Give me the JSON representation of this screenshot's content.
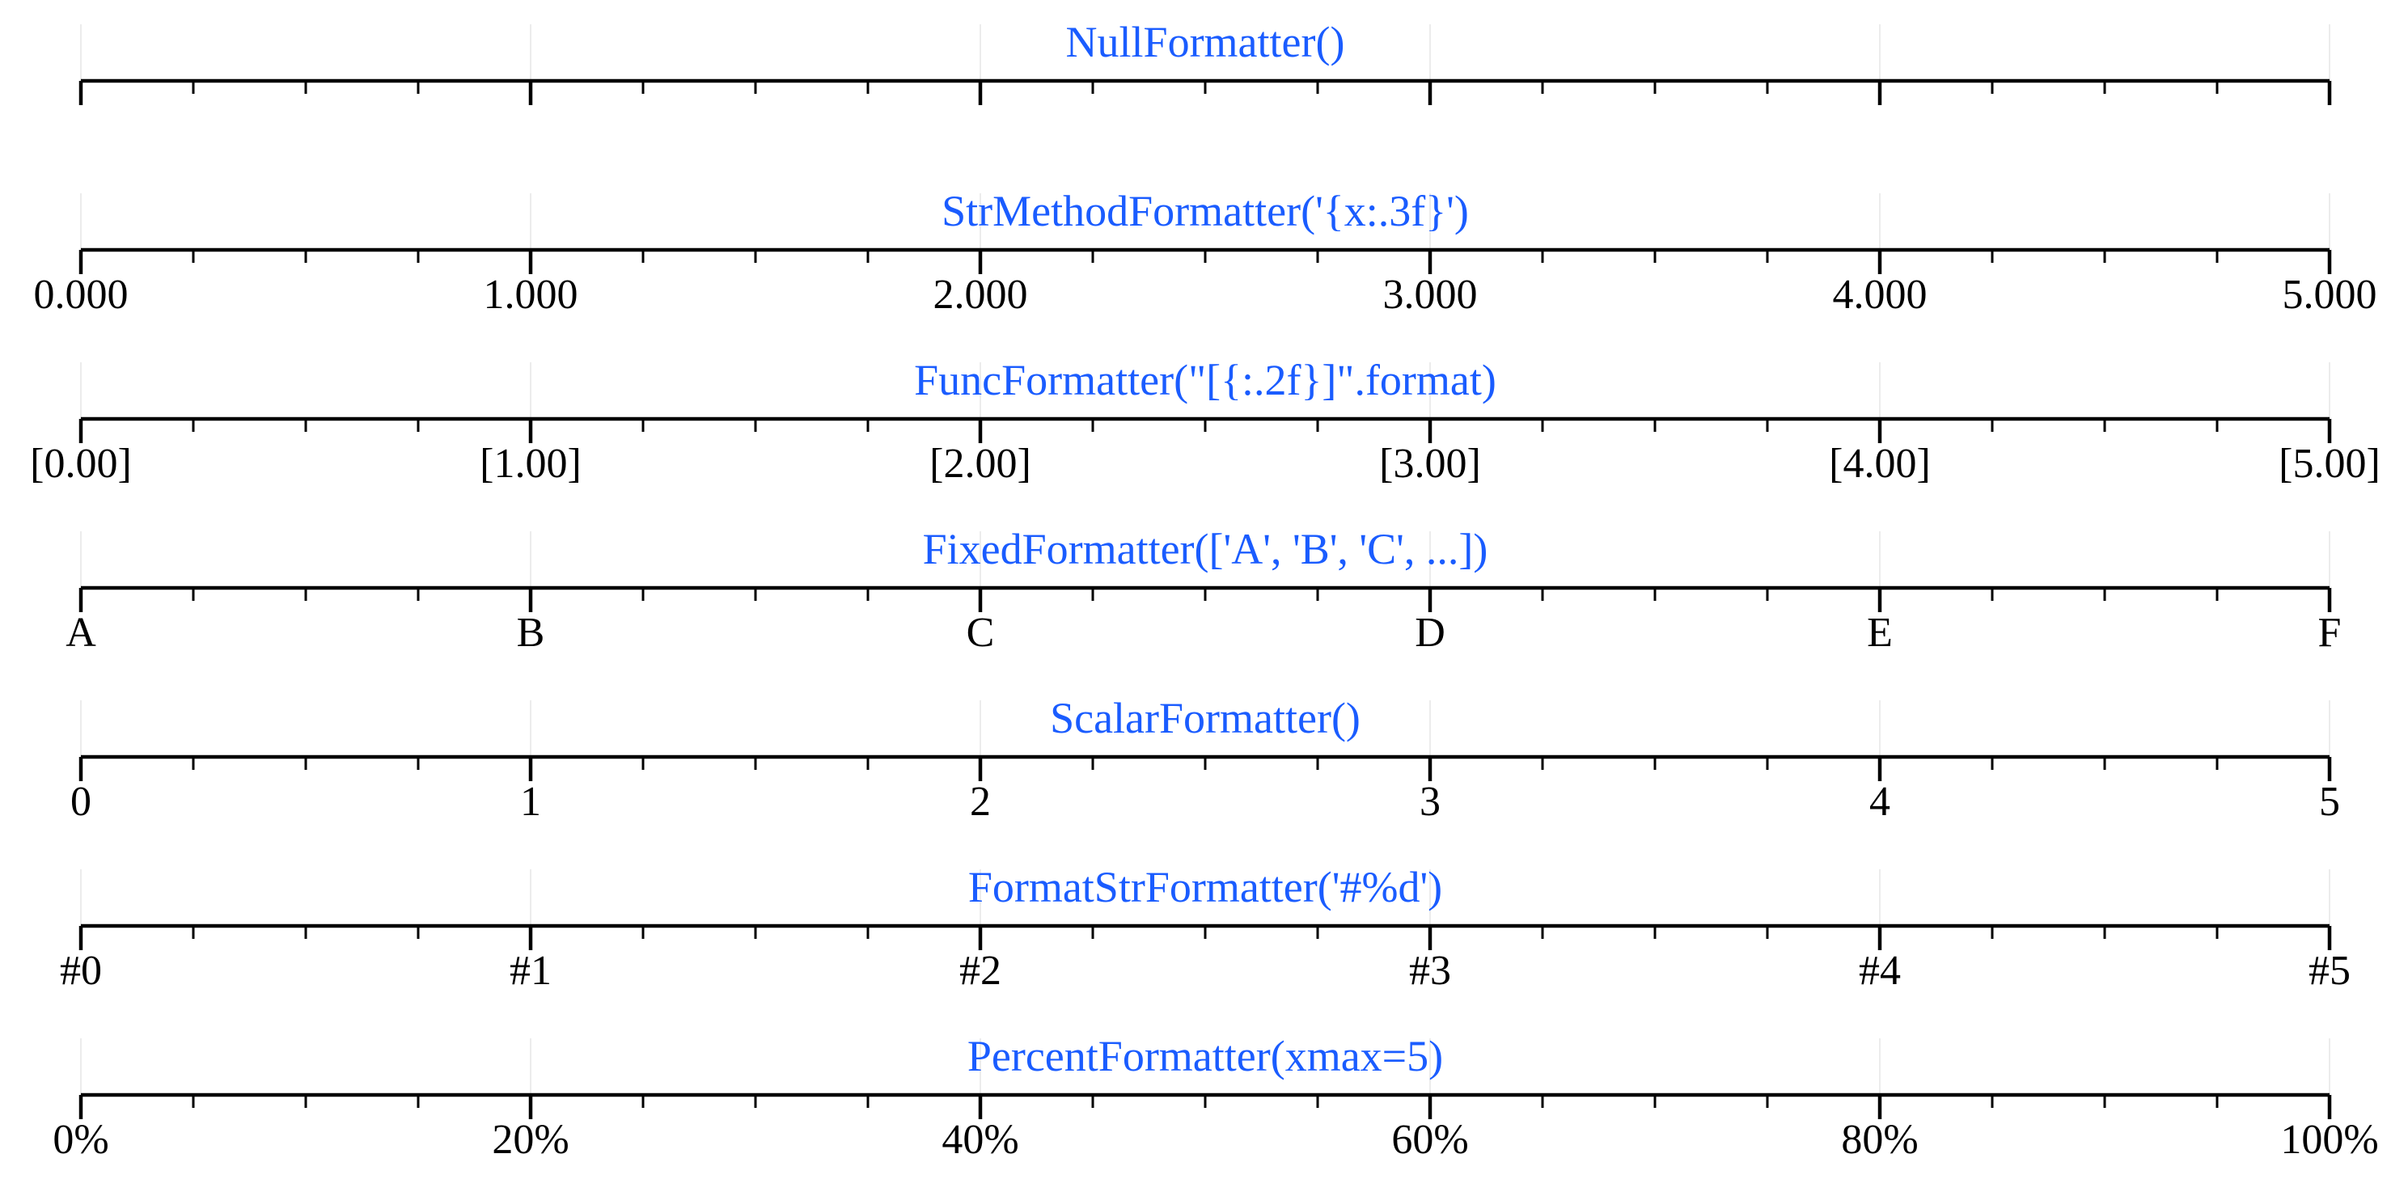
{
  "chart_data": {
    "type": "axis-formatters",
    "xlim": [
      0,
      5
    ],
    "major_ticks": [
      0,
      1,
      2,
      3,
      4,
      5
    ],
    "minor_ticks": [
      0.25,
      0.5,
      0.75,
      1.25,
      1.5,
      1.75,
      2.25,
      2.5,
      2.75,
      3.25,
      3.5,
      3.75,
      4.25,
      4.5,
      4.75
    ],
    "grid": true,
    "colors": {
      "title": "#1a5cff",
      "axis": "#000000",
      "grid": "#e6e6e6"
    },
    "panels": [
      {
        "title": "NullFormatter()",
        "tick_labels": []
      },
      {
        "title": "StrMethodFormatter('{x:.3f}')",
        "tick_labels": [
          "0.000",
          "1.000",
          "2.000",
          "3.000",
          "4.000",
          "5.000"
        ]
      },
      {
        "title": "FuncFormatter(\"[{:.2f}]\".format)",
        "tick_labels": [
          "[0.00]",
          "[1.00]",
          "[2.00]",
          "[3.00]",
          "[4.00]",
          "[5.00]"
        ]
      },
      {
        "title": "FixedFormatter(['A', 'B', 'C', ...])",
        "tick_labels": [
          "A",
          "B",
          "C",
          "D",
          "E",
          "F"
        ]
      },
      {
        "title": "ScalarFormatter()",
        "tick_labels": [
          "0",
          "1",
          "2",
          "3",
          "4",
          "5"
        ]
      },
      {
        "title": "FormatStrFormatter('#%d')",
        "tick_labels": [
          "#0",
          "#1",
          "#2",
          "#3",
          "#4",
          "#5"
        ]
      },
      {
        "title": "PercentFormatter(xmax=5)",
        "tick_labels": [
          "0%",
          "20%",
          "40%",
          "60%",
          "80%",
          "100%"
        ]
      }
    ]
  }
}
